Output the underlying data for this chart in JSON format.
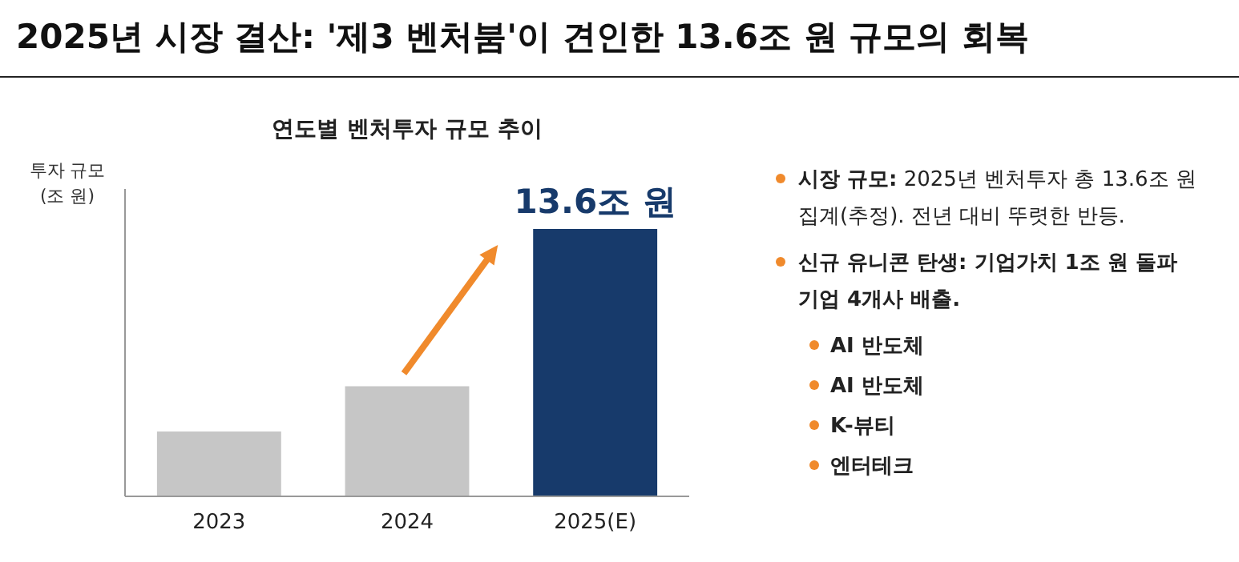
{
  "chart_data": [
    {
      "type": "bar",
      "title": "2025년 시장 결산: '제3 벤처붐'이 견인한 13.6조 원 규모의 회복",
      "subtitle": "연도별 벤처투자 규모 추이",
      "ylabel": "투자 규모\n(조 원)",
      "categories": [
        "2023",
        "2024",
        "2025(E)"
      ],
      "values": [
        3.3,
        5.6,
        13.6
      ],
      "colors": [
        "#c6c6c6",
        "#c6c6c6",
        "#173a6b"
      ],
      "value_labels": [
        null,
        null,
        "13.6조 원"
      ]
    },
    {
      "type": "other",
      "annotations": [
        "시장 규모: 2025년 벤처투자 총 13.6조 원 집계(추정). 전년 대비 뚜렷한 반등.",
        "신규 유니콘 탄생: 기업가치 1조 원 돌파 기업 4개사 배출.",
        "AI 반도체",
        "AI 반도체",
        "K-뷰티",
        "엔터테크"
      ]
    }
  ]
}
